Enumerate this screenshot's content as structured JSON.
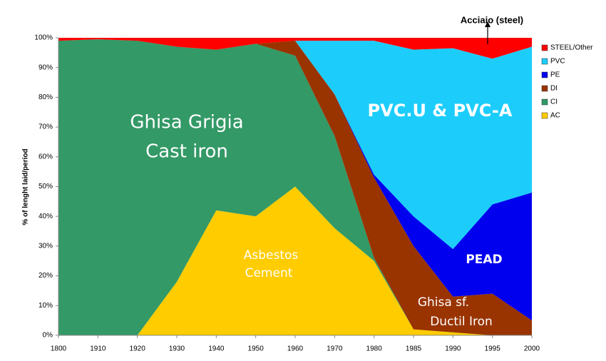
{
  "chart_data": {
    "type": "stacked_area",
    "y_label": "% of lenght laid/period",
    "categories": [
      "1800",
      "1910",
      "1920",
      "1930",
      "1940",
      "1950",
      "1960",
      "1970",
      "1980",
      "1985",
      "1990",
      "1995",
      "2000"
    ],
    "series": [
      {
        "name": "AC",
        "color": "#ffcc00",
        "values": [
          0,
          0,
          0,
          18,
          42,
          40,
          50,
          36,
          25,
          2,
          1,
          0,
          0
        ]
      },
      {
        "name": "CI",
        "color": "#339966",
        "values": [
          99,
          99.5,
          99,
          79,
          54,
          58,
          44,
          31,
          1,
          0,
          0,
          0,
          0
        ]
      },
      {
        "name": "DI",
        "color": "#993300",
        "values": [
          0,
          0,
          0,
          0,
          0,
          0,
          5,
          14,
          27,
          28,
          12,
          14,
          5
        ]
      },
      {
        "name": "PE",
        "color": "#0000ee",
        "values": [
          0,
          0,
          0,
          0,
          0,
          0,
          0,
          0,
          1,
          10,
          16,
          30,
          43
        ]
      },
      {
        "name": "PVC",
        "color": "#1ccdfb",
        "values": [
          0,
          0,
          0,
          0,
          0,
          0,
          0,
          18,
          45,
          56,
          67.5,
          49,
          49
        ]
      },
      {
        "name": "STEEL/Other",
        "color": "#ff0000",
        "values": [
          1,
          0.5,
          1,
          3,
          4,
          2,
          1,
          1,
          1,
          4,
          3.5,
          7,
          3
        ]
      }
    ],
    "ylim": [
      0,
      100
    ],
    "yticks": [
      {
        "value": 0,
        "label": "0%"
      },
      {
        "value": 10,
        "label": "10%"
      },
      {
        "value": 20,
        "label": "20%"
      },
      {
        "value": 30,
        "label": "30%"
      },
      {
        "value": 40,
        "label": "40%"
      },
      {
        "value": 50,
        "label": "50%"
      },
      {
        "value": 60,
        "label": "60%"
      },
      {
        "value": 70,
        "label": "70%"
      },
      {
        "value": 80,
        "label": "80%"
      },
      {
        "value": 90,
        "label": "90%"
      },
      {
        "value": 100,
        "label": "100%"
      }
    ],
    "annotations": [
      "Ghisa Grigia",
      "Cast iron",
      "Asbestos",
      "Cement",
      "PVC.U & PVC-A",
      "PEAD",
      "Ghisa sf.",
      "Ductil Iron",
      "Acciaio (steel)"
    ]
  }
}
